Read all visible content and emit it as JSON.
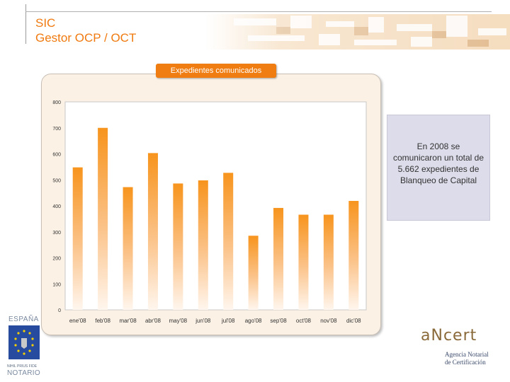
{
  "header": {
    "title_line1": "SIC",
    "title_line2": "Gestor OCP / OCT"
  },
  "chart_label": "Expedientes comunicados",
  "note_text": "En 2008 se comunicaron un total de 5.662 expedientes de Blanqueo de Capital",
  "logos": {
    "left_top": "ESPAÑA",
    "left_motto": "NIHIL PRIUS FIDE",
    "left_bottom": "NOTARIO",
    "right_name": "aNcert",
    "right_line1": "Agencia Notarial",
    "right_line2": "de Certificación"
  },
  "colors": {
    "accent": "#f07a10",
    "bar": "#f7941d",
    "panel": "#fbf1e5",
    "note_bg": "#dcdcea"
  },
  "chart_data": {
    "type": "bar",
    "title": "Expedientes comunicados",
    "xlabel": "",
    "ylabel": "",
    "categories": [
      "ene'08",
      "feb'08",
      "mar'08",
      "abr'08",
      "may'08",
      "jun'08",
      "jul'08",
      "ago'08",
      "sep'08",
      "oct'08",
      "nov'08",
      "dic'08"
    ],
    "values": [
      548,
      700,
      472,
      603,
      486,
      498,
      527,
      285,
      392,
      366,
      366,
      419
    ],
    "ylim": [
      0,
      800
    ],
    "yticks": [
      0,
      100,
      200,
      300,
      400,
      500,
      600,
      700,
      800
    ],
    "grid": false,
    "legend": "none"
  }
}
